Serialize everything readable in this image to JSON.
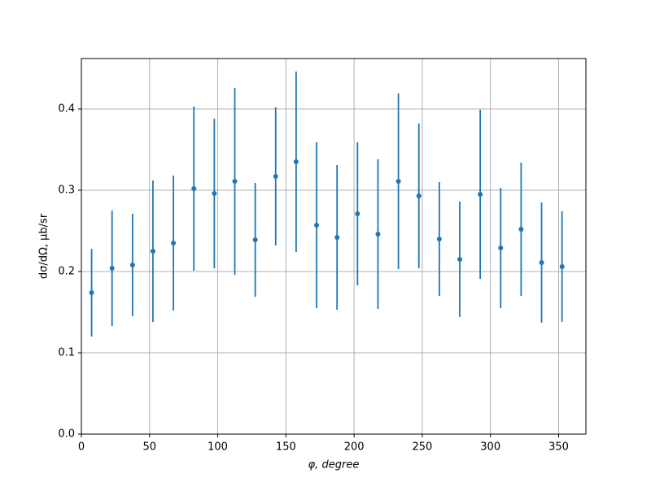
{
  "chart_data": {
    "type": "errorbar",
    "x": [
      7.5,
      22.5,
      37.5,
      52.5,
      67.5,
      82.5,
      97.5,
      112.5,
      127.5,
      142.5,
      157.5,
      172.5,
      187.5,
      202.5,
      217.5,
      232.5,
      247.5,
      262.5,
      277.5,
      292.5,
      307.5,
      322.5,
      337.5,
      352.5
    ],
    "values": [
      0.174,
      0.204,
      0.208,
      0.225,
      0.235,
      0.302,
      0.296,
      0.311,
      0.239,
      0.317,
      0.335,
      0.257,
      0.242,
      0.271,
      0.246,
      0.311,
      0.293,
      0.24,
      0.215,
      0.295,
      0.229,
      0.252,
      0.211,
      0.206
    ],
    "errors": [
      0.054,
      0.071,
      0.063,
      0.087,
      0.083,
      0.101,
      0.092,
      0.115,
      0.07,
      0.085,
      0.111,
      0.102,
      0.089,
      0.088,
      0.092,
      0.108,
      0.089,
      0.07,
      0.071,
      0.104,
      0.074,
      0.082,
      0.074,
      0.068
    ],
    "color": "#1f77b4",
    "xlabel": "φ, degree",
    "ylabel": "dσ/dΩ, μb/sr",
    "xlim": [
      0,
      370
    ],
    "ylim": [
      0,
      0.462
    ],
    "xticks": [
      0,
      50,
      100,
      150,
      200,
      250,
      300,
      350
    ],
    "yticks": [
      {
        "value": 0,
        "label": "0.0"
      },
      0.1,
      0.2,
      0.3,
      0.4
    ],
    "grid": true
  }
}
